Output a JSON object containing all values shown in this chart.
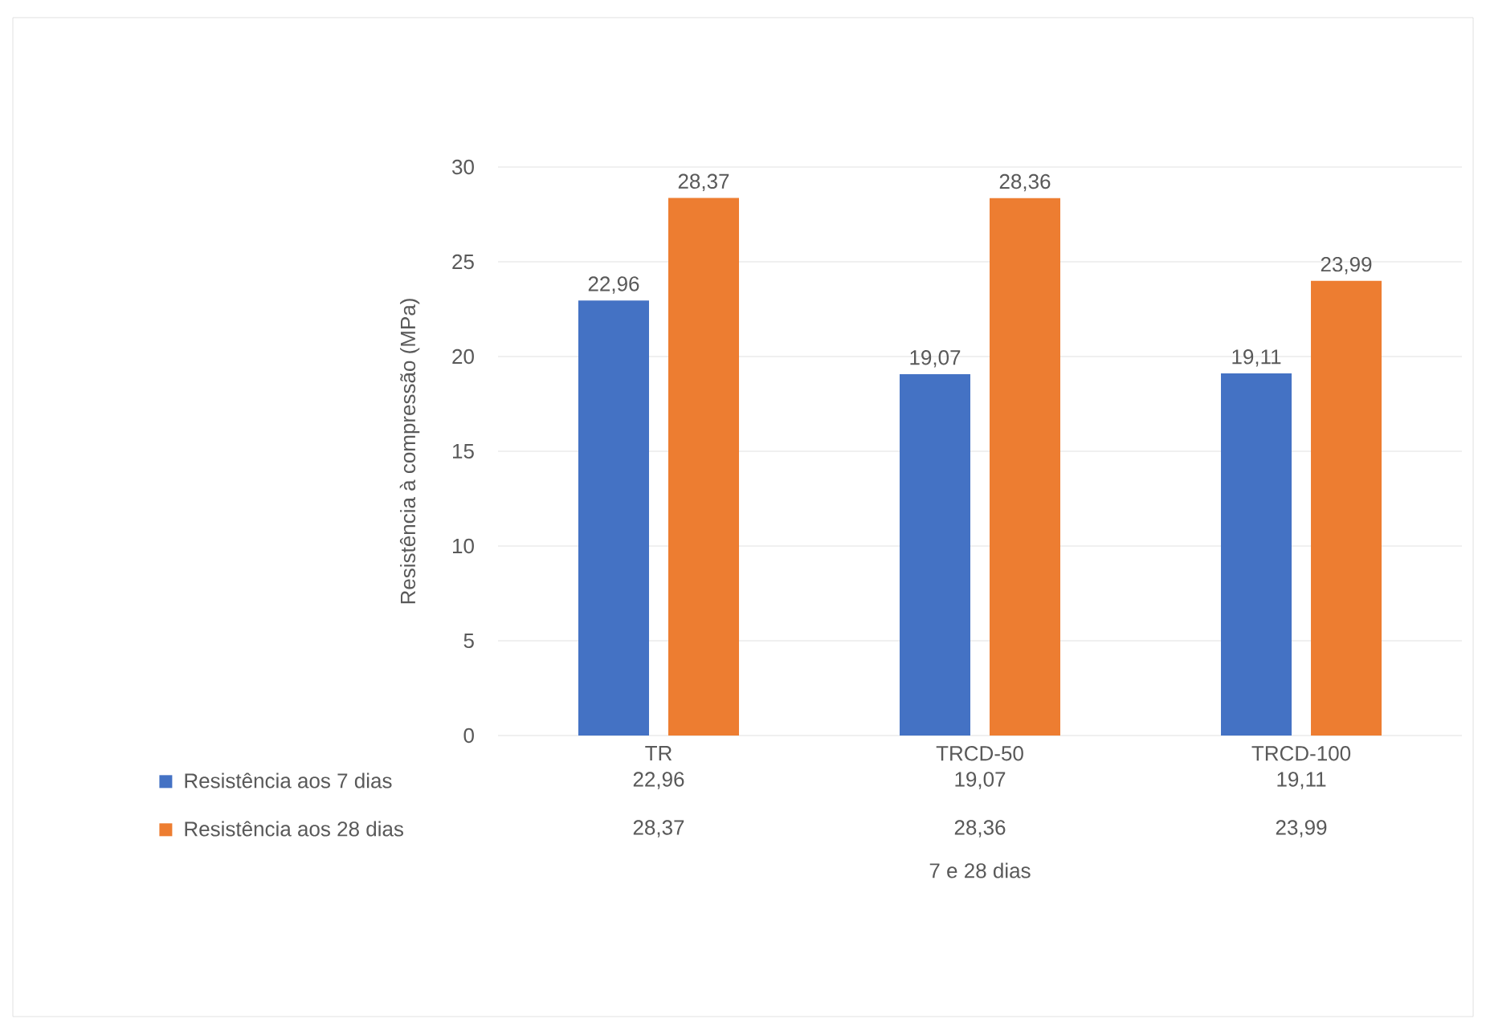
{
  "chart_data": {
    "type": "bar",
    "ylabel": "Resistência à compressão (MPa)",
    "xlabel": "7 e 28 dias",
    "categories": [
      "TR",
      "TRCD-50",
      "TRCD-100"
    ],
    "series": [
      {
        "name": "Resistência aos 7 dias",
        "color": "#4472c4",
        "values": [
          22.96,
          19.07,
          19.11
        ],
        "value_labels": [
          "22,96",
          "19,07",
          "19,11"
        ]
      },
      {
        "name": "Resistência aos 28 dias",
        "color": "#ed7d31",
        "values": [
          28.37,
          28.36,
          23.99
        ],
        "value_labels": [
          "28,37",
          "28,36",
          "23,99"
        ]
      }
    ],
    "ylim": [
      0,
      30
    ],
    "yticks": [
      0,
      5,
      10,
      15,
      20,
      25,
      30
    ],
    "grid": "y",
    "legend": "bottom"
  }
}
